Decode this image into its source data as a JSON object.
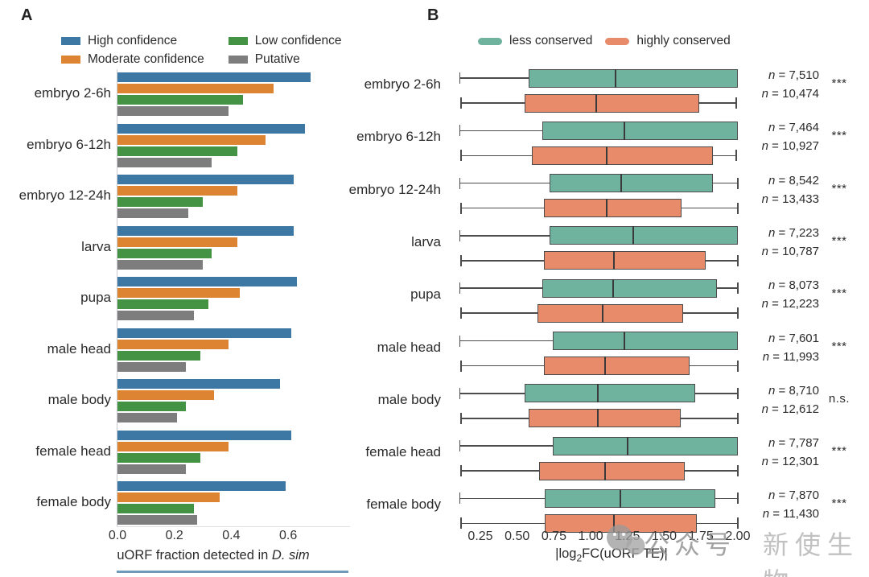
{
  "figure": {
    "panel_a_label": "A",
    "panel_b_label": "B",
    "watermark": {
      "icon": "wechat-icon",
      "text_left": "公众号",
      "text_right": "新使生物"
    }
  },
  "colors": {
    "high_confidence": "#3d78a4",
    "moderate_confidence": "#dc8432",
    "low_confidence": "#449244",
    "putative": "#7d7d7d",
    "less_conserved": "#6fb29e",
    "highly_conserved": "#e88b6b",
    "box_border": "#4c4c4c"
  },
  "chart_data": [
    {
      "type": "bar",
      "panel": "A",
      "orientation": "horizontal",
      "categories": [
        "embryo 2-6h",
        "embryo 6-12h",
        "embryo 12-24h",
        "larva",
        "pupa",
        "male head",
        "male body",
        "female head",
        "female body"
      ],
      "series": [
        {
          "name": "High confidence",
          "color": "#3d78a4",
          "values": [
            0.68,
            0.66,
            0.62,
            0.62,
            0.63,
            0.61,
            0.57,
            0.61,
            0.59
          ]
        },
        {
          "name": "Moderate confidence",
          "color": "#dc8432",
          "values": [
            0.55,
            0.52,
            0.42,
            0.42,
            0.43,
            0.39,
            0.34,
            0.39,
            0.36
          ]
        },
        {
          "name": "Low confidence",
          "color": "#449244",
          "values": [
            0.44,
            0.42,
            0.3,
            0.33,
            0.32,
            0.29,
            0.24,
            0.29,
            0.27
          ]
        },
        {
          "name": "Putative",
          "color": "#7d7d7d",
          "values": [
            0.39,
            0.33,
            0.25,
            0.3,
            0.27,
            0.24,
            0.21,
            0.24,
            0.28
          ]
        }
      ],
      "xticks": [
        "0.0",
        "0.2",
        "0.4",
        "0.6"
      ],
      "xlim": [
        0,
        0.72
      ],
      "xlabel_prefix": "uORF fraction detected in ",
      "xlabel_italic": "D. sim",
      "legend_position": "top",
      "grid": false
    },
    {
      "type": "boxplot",
      "panel": "B",
      "orientation": "horizontal",
      "series_legend": [
        {
          "name": "less conserved",
          "color": "#6fb29e"
        },
        {
          "name": "highly conserved",
          "color": "#e88b6b"
        }
      ],
      "box_values_order": [
        "whisker_low",
        "q1",
        "median",
        "q3",
        "whisker_high"
      ],
      "n_prefix_italic": "n",
      "n_prefix_rest": " = ",
      "rows": [
        {
          "category": "embryo 2-6h",
          "less_conserved": [
            0.11,
            0.58,
            1.17,
            2.0,
            2.0
          ],
          "highly_conserved": [
            0.12,
            0.55,
            1.04,
            1.74,
            1.99
          ],
          "n_less": "7,510",
          "n_high": "10,474",
          "significance": "***"
        },
        {
          "category": "embryo 6-12h",
          "less_conserved": [
            0.11,
            0.67,
            1.23,
            2.0,
            2.0
          ],
          "highly_conserved": [
            0.12,
            0.6,
            1.11,
            1.83,
            1.99
          ],
          "n_less": "7,464",
          "n_high": "10,927",
          "significance": "***"
        },
        {
          "category": "embryo 12-24h",
          "less_conserved": [
            0.11,
            0.72,
            1.21,
            1.83,
            2.0
          ],
          "highly_conserved": [
            0.12,
            0.68,
            1.11,
            1.62,
            2.0
          ],
          "n_less": "8,542",
          "n_high": "13,433",
          "significance": "***"
        },
        {
          "category": "larva",
          "less_conserved": [
            0.11,
            0.72,
            1.29,
            2.0,
            2.0
          ],
          "highly_conserved": [
            0.12,
            0.68,
            1.16,
            1.78,
            2.0
          ],
          "n_less": "7,223",
          "n_high": "10,787",
          "significance": "***"
        },
        {
          "category": "pupa",
          "less_conserved": [
            0.11,
            0.67,
            1.15,
            1.86,
            2.0
          ],
          "highly_conserved": [
            0.12,
            0.64,
            1.08,
            1.63,
            2.0
          ],
          "n_less": "8,073",
          "n_high": "12,223",
          "significance": "***"
        },
        {
          "category": "male head",
          "less_conserved": [
            0.11,
            0.74,
            1.23,
            2.0,
            2.0
          ],
          "highly_conserved": [
            0.12,
            0.68,
            1.1,
            1.67,
            2.0
          ],
          "n_less": "7,601",
          "n_high": "11,993",
          "significance": "***"
        },
        {
          "category": "male body",
          "less_conserved": [
            0.11,
            0.55,
            1.05,
            1.71,
            2.0
          ],
          "highly_conserved": [
            0.12,
            0.58,
            1.05,
            1.61,
            2.0
          ],
          "n_less": "8,710",
          "n_high": "12,612",
          "significance": "n.s."
        },
        {
          "category": "female head",
          "less_conserved": [
            0.11,
            0.74,
            1.25,
            2.0,
            2.0
          ],
          "highly_conserved": [
            0.12,
            0.65,
            1.1,
            1.64,
            2.0
          ],
          "n_less": "7,787",
          "n_high": "12,301",
          "significance": "***"
        },
        {
          "category": "female body",
          "less_conserved": [
            0.11,
            0.69,
            1.2,
            1.85,
            2.0
          ],
          "highly_conserved": [
            0.12,
            0.69,
            1.16,
            1.72,
            2.0
          ],
          "n_less": "7,870",
          "n_high": "11,430",
          "significance": "***"
        }
      ],
      "xticks": [
        "0.25",
        "0.50",
        "0.75",
        "1.00",
        "1.25",
        "1.50",
        "1.75",
        "2.00"
      ],
      "xlim": [
        0.05,
        2.05
      ],
      "xlabel_parts": {
        "prefix": "|log",
        "sub": "2",
        "suffix": "FC(uORF TE)|"
      },
      "legend_position": "top",
      "grid": false
    }
  ]
}
